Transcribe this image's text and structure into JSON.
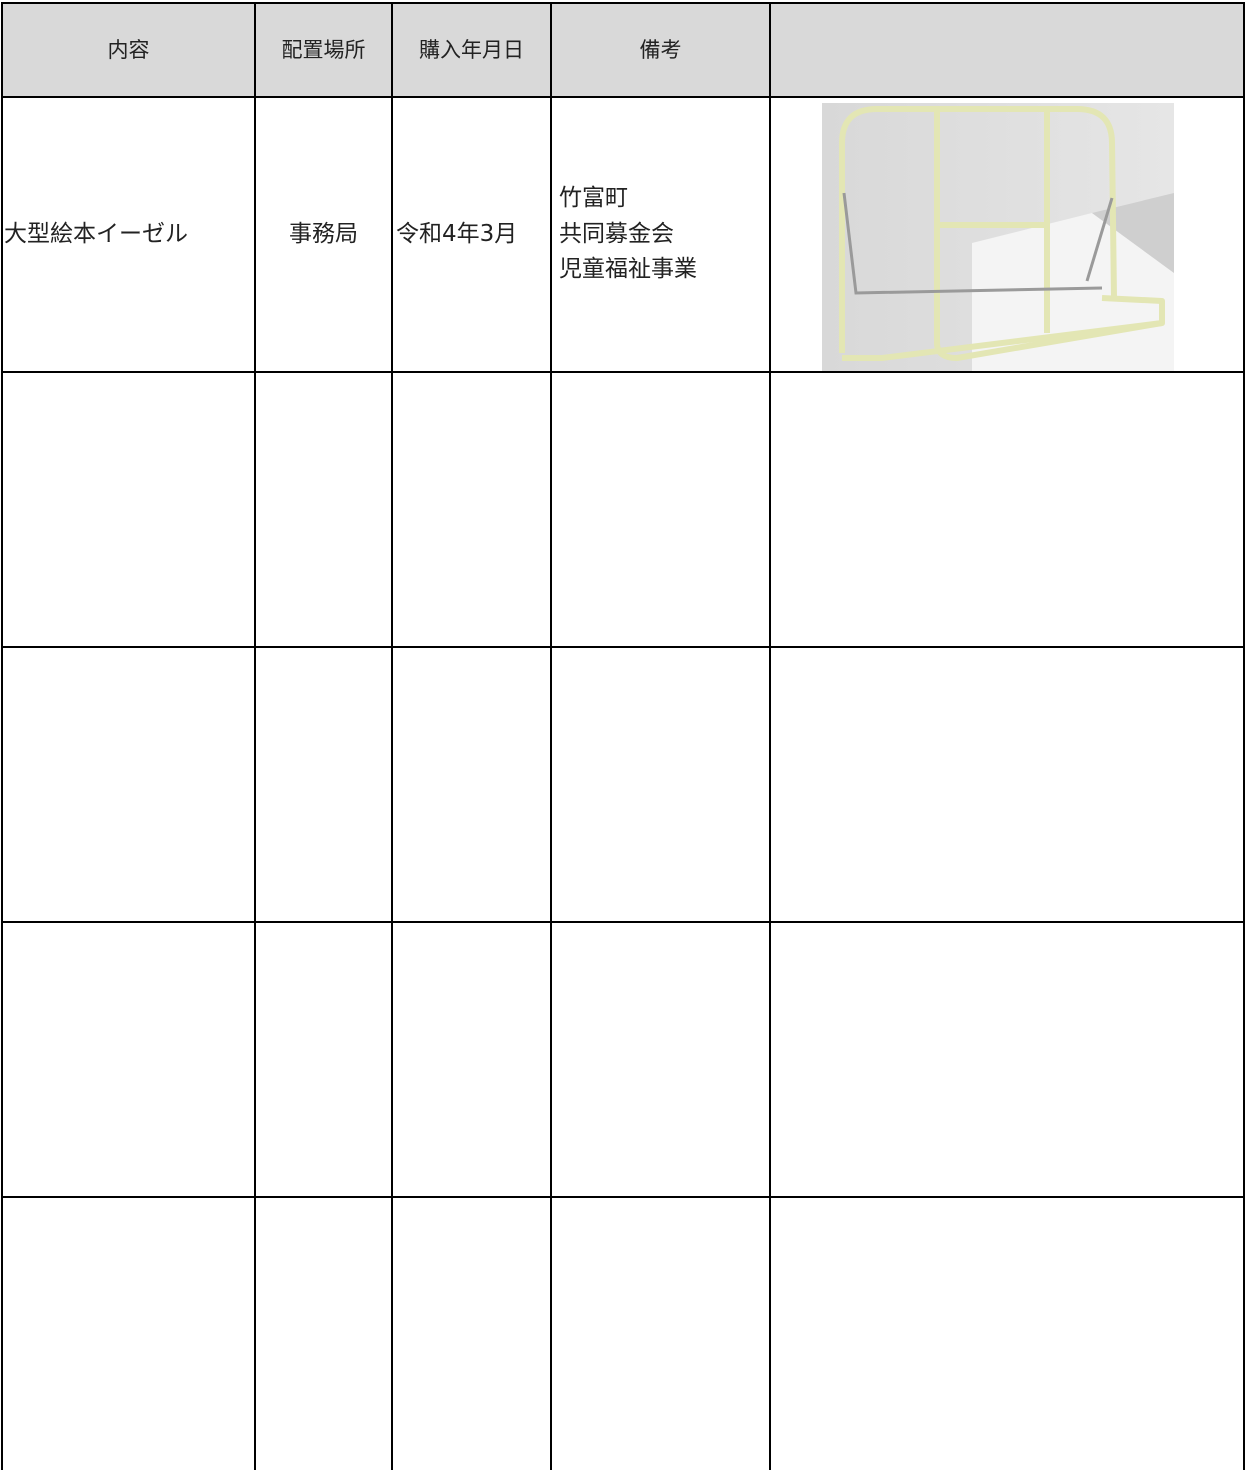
{
  "table": {
    "header": [
      "内容",
      "配置場所",
      "購入年月日",
      "備考"
    ],
    "rows": [
      {
        "name": "大型絵本イーゼル",
        "place": "事務局",
        "date": "令和4年3月",
        "note": [
          "竹富町",
          "共同募金会",
          "児童福祉事業"
        ]
      }
    ]
  }
}
